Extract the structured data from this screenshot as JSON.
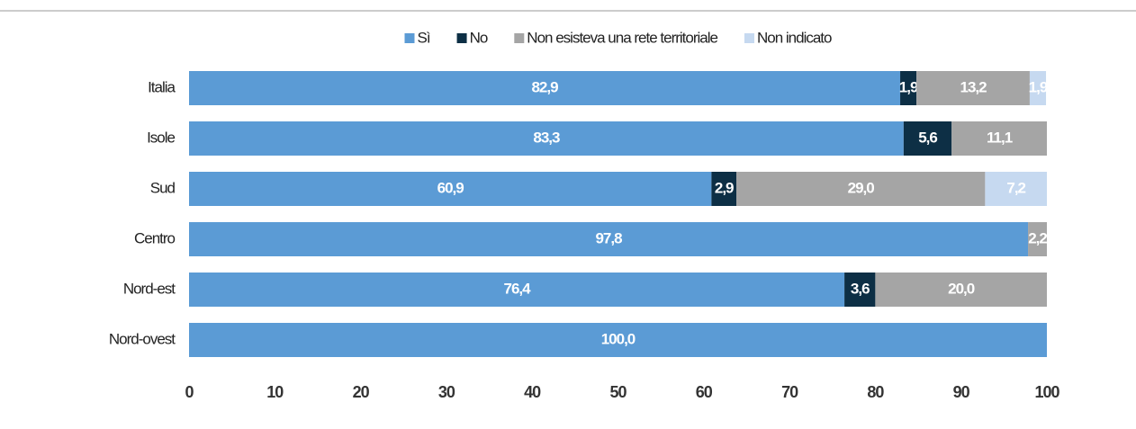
{
  "chart_data": {
    "type": "stacked-bar-horizontal",
    "categories": [
      "Italia",
      "Isole",
      "Sud",
      "Centro",
      "Nord-est",
      "Nord-ovest"
    ],
    "series": [
      {
        "name": "Sì",
        "color": "#5b9bd5",
        "values": [
          82.9,
          83.3,
          60.9,
          97.8,
          76.4,
          100.0
        ],
        "value_labels": [
          "82,9",
          "83,3",
          "60,9",
          "97,8",
          "76,4",
          "100,0"
        ]
      },
      {
        "name": "No",
        "color": "#0d2f45",
        "values": [
          1.9,
          5.6,
          2.9,
          0,
          3.6,
          0
        ],
        "value_labels": [
          "1,9",
          "5,6",
          "2,9",
          null,
          "3,6",
          null
        ]
      },
      {
        "name": "Non esisteva una rete territoriale",
        "color": "#a5a5a5",
        "values": [
          13.2,
          11.1,
          29.0,
          2.2,
          20.0,
          0
        ],
        "value_labels": [
          "13,2",
          "11,1",
          "29,0",
          "2,2",
          "20,0",
          null
        ]
      },
      {
        "name": "Non indicato",
        "color": "#c6d9f0",
        "values": [
          1.9,
          0,
          7.2,
          0,
          0,
          0
        ],
        "value_labels": [
          "1,9",
          null,
          "7,2",
          null,
          null,
          null
        ]
      }
    ],
    "xlim": [
      0,
      100
    ],
    "xticks": [
      0,
      10,
      20,
      30,
      40,
      50,
      60,
      70,
      80,
      90,
      100
    ],
    "legend": "top"
  }
}
